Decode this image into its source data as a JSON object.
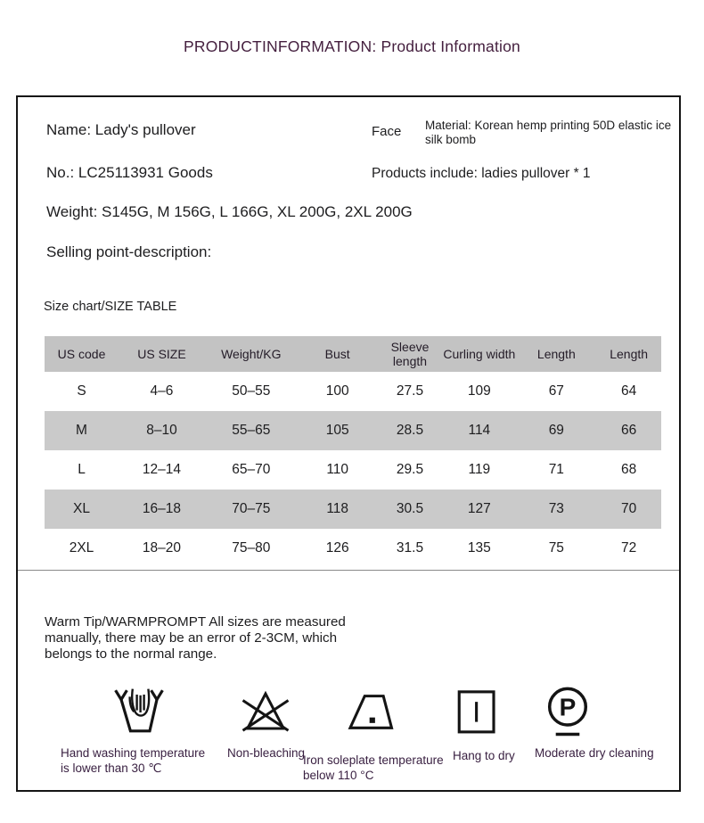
{
  "page_title": "PRODUCTINFORMATION: Product Information",
  "info": {
    "name": "Name: Lady's pullover",
    "no": "No.: LC25113931 Goods",
    "face_label": "Face",
    "material": "Material: Korean hemp printing 50D elastic ice silk bomb",
    "products_include": "Products include: ladies pullover * 1",
    "weight": "Weight: S145G, M 156G, L 166G, XL 200G, 2XL 200G",
    "selling_point": "Selling point-description:"
  },
  "size_chart": {
    "caption": "Size chart/SIZE TABLE",
    "headers": [
      "US code",
      "US SIZE",
      "Weight/KG",
      "Bust",
      "Sleeve length",
      "Curling width",
      "Length",
      "Length"
    ],
    "rows": [
      [
        "S",
        "4–6",
        "50–55",
        "100",
        "27.5",
        "109",
        "67",
        "64"
      ],
      [
        "M",
        "8–10",
        "55–65",
        "105",
        "28.5",
        "114",
        "69",
        "66"
      ],
      [
        "L",
        "12–14",
        "65–70",
        "110",
        "29.5",
        "119",
        "71",
        "68"
      ],
      [
        "XL",
        "16–18",
        "70–75",
        "118",
        "30.5",
        "127",
        "73",
        "70"
      ],
      [
        "2XL",
        "18–20",
        "75–80",
        "126",
        "31.5",
        "135",
        "75",
        "72"
      ]
    ]
  },
  "warm_tip": "Warm Tip/WARMPROMPT All sizes are measured manually, there may be an error of 2-3CM, which belongs to the normal range.",
  "care_instructions": [
    {
      "icon": "hand-wash-icon",
      "label": "Hand washing temperature is lower than 30 ℃"
    },
    {
      "icon": "non-bleaching-icon",
      "label": "Non-bleaching"
    },
    {
      "icon": "iron-icon",
      "label": "Iron soleplate temperature below 110 °C"
    },
    {
      "icon": "hang-to-dry-icon",
      "label": "Hang to dry"
    },
    {
      "icon": "dry-cleaning-icon",
      "label": "Moderate dry cleaning",
      "symbol": "P"
    }
  ],
  "colors": {
    "title": "#45203f",
    "text": "#1d1d1f",
    "table_header_bg": "#c3c3c3",
    "table_alt_row_bg": "#cacaca",
    "care_label": "#3a2142"
  }
}
